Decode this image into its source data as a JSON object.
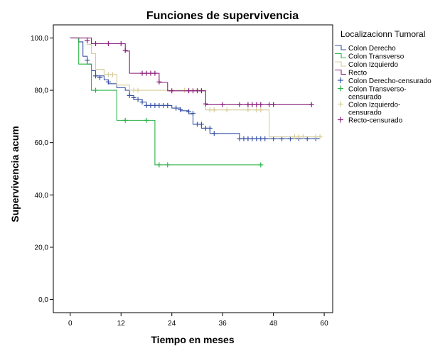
{
  "chart_data": {
    "type": "line",
    "title": "Funciones de supervivencia",
    "xlabel": "Tiempo en meses",
    "ylabel": "Supervivencia acum",
    "xlim": [
      -4,
      62
    ],
    "ylim": [
      -5,
      105
    ],
    "xticks": [
      "0",
      "12",
      "24",
      "36",
      "48",
      "60"
    ],
    "yticks": [
      "0,0",
      "20,0",
      "40,0",
      "60,0",
      "80,0",
      "100,0"
    ],
    "legend_title": "Localizacionn Tumoral",
    "legend_placement": "right",
    "legend": [
      {
        "label": "Colon Derecho",
        "kind": "line",
        "color": "#3953a4"
      },
      {
        "label": "Colon Transverso",
        "kind": "line",
        "color": "#2cb34a"
      },
      {
        "label": "Colon Izquierdo",
        "kind": "line",
        "color": "#d5cc9a"
      },
      {
        "label": "Recto",
        "kind": "line",
        "color": "#8a1f7a"
      },
      {
        "label": "Colon Derecho-censurado",
        "kind": "censor",
        "color": "#3953a4"
      },
      {
        "label": "Colon Transverso-\ncensurado",
        "kind": "censor",
        "color": "#2cb34a"
      },
      {
        "label": "Colon Izquierdo-\ncensurado",
        "kind": "censor",
        "color": "#d5cc9a"
      },
      {
        "label": "Recto-censurado",
        "kind": "censor",
        "color": "#8a1f7a"
      }
    ],
    "series": [
      {
        "name": "Colon Derecho",
        "color": "#3953a4",
        "steps": [
          [
            0,
            100
          ],
          [
            2,
            98.5
          ],
          [
            3,
            93
          ],
          [
            4,
            90
          ],
          [
            5,
            87.5
          ],
          [
            6,
            85.5
          ],
          [
            8,
            84
          ],
          [
            9,
            82.5
          ],
          [
            11,
            81
          ],
          [
            13,
            80
          ],
          [
            14,
            78
          ],
          [
            15,
            76.5
          ],
          [
            17,
            75.5
          ],
          [
            18,
            74.2
          ],
          [
            24,
            73.2
          ],
          [
            26,
            72.2
          ],
          [
            28,
            71
          ],
          [
            29,
            67
          ],
          [
            31,
            65.5
          ],
          [
            33,
            63.5
          ],
          [
            40,
            61.5
          ],
          [
            59,
            61.5
          ]
        ],
        "censored": [
          [
            4,
            91.5
          ],
          [
            6,
            85.5
          ],
          [
            7,
            84.8
          ],
          [
            9,
            83.2
          ],
          [
            14,
            78
          ],
          [
            15,
            77.2
          ],
          [
            16,
            76.5
          ],
          [
            17,
            75.5
          ],
          [
            18,
            74.2
          ],
          [
            19,
            74.2
          ],
          [
            20,
            74.2
          ],
          [
            21,
            74.2
          ],
          [
            22,
            74.2
          ],
          [
            23,
            74.2
          ],
          [
            25,
            73.2
          ],
          [
            26,
            72.6
          ],
          [
            28,
            71.8
          ],
          [
            29,
            71.2
          ],
          [
            30,
            67
          ],
          [
            31,
            67
          ],
          [
            32,
            65.5
          ],
          [
            33,
            65.5
          ],
          [
            34,
            63.5
          ],
          [
            40,
            61.5
          ],
          [
            41,
            61.5
          ],
          [
            42,
            61.5
          ],
          [
            43,
            61.5
          ],
          [
            44,
            61.5
          ],
          [
            45,
            61.5
          ],
          [
            46,
            61.5
          ],
          [
            48,
            61.5
          ],
          [
            50,
            61.5
          ],
          [
            52,
            61.5
          ],
          [
            54,
            61.5
          ],
          [
            56,
            61.5
          ],
          [
            58,
            61.5
          ]
        ]
      },
      {
        "name": "Colon Transverso",
        "color": "#2cb34a",
        "steps": [
          [
            0,
            100
          ],
          [
            2,
            90
          ],
          [
            5,
            80
          ],
          [
            11,
            68.5
          ],
          [
            20,
            51.5
          ],
          [
            45,
            51.5
          ]
        ],
        "censored": [
          [
            6,
            80
          ],
          [
            13,
            68.5
          ],
          [
            18,
            68.5
          ],
          [
            21,
            51.5
          ],
          [
            23,
            51.5
          ],
          [
            45,
            51.5
          ]
        ]
      },
      {
        "name": "Colon Izquierdo",
        "color": "#d5cc9a",
        "steps": [
          [
            0,
            100
          ],
          [
            4,
            97.5
          ],
          [
            5,
            94
          ],
          [
            6,
            88
          ],
          [
            8,
            86
          ],
          [
            11,
            82
          ],
          [
            14,
            80
          ],
          [
            32,
            72.5
          ],
          [
            47,
            62.2
          ],
          [
            59,
            62.2
          ]
        ],
        "censored": [
          [
            9,
            86
          ],
          [
            10,
            86
          ],
          [
            15,
            80
          ],
          [
            16,
            80
          ],
          [
            27,
            80
          ],
          [
            28,
            80
          ],
          [
            30,
            80
          ],
          [
            31,
            80
          ],
          [
            33,
            72.5
          ],
          [
            34,
            72.5
          ],
          [
            37,
            72.5
          ],
          [
            42,
            72.5
          ],
          [
            44,
            72.5
          ],
          [
            45,
            72.5
          ],
          [
            53,
            62.2
          ],
          [
            54,
            62.2
          ],
          [
            55,
            62.2
          ],
          [
            58,
            62.2
          ],
          [
            59,
            62.2
          ]
        ]
      },
      {
        "name": "Recto",
        "color": "#8a1f7a",
        "steps": [
          [
            0,
            100
          ],
          [
            5,
            97.8
          ],
          [
            13,
            95
          ],
          [
            14,
            86.5
          ],
          [
            21,
            83
          ],
          [
            23,
            79.8
          ],
          [
            32,
            74.5
          ],
          [
            57,
            74.5
          ]
        ],
        "censored": [
          [
            4,
            99
          ],
          [
            6,
            97.8
          ],
          [
            9,
            97.8
          ],
          [
            12,
            97.8
          ],
          [
            13,
            95.2
          ],
          [
            17,
            86.5
          ],
          [
            18,
            86.5
          ],
          [
            19,
            86.5
          ],
          [
            20,
            86.5
          ],
          [
            21,
            83.2
          ],
          [
            24,
            79.8
          ],
          [
            28,
            79.8
          ],
          [
            29,
            79.8
          ],
          [
            30,
            79.8
          ],
          [
            31,
            79.8
          ],
          [
            32,
            74.8
          ],
          [
            36,
            74.5
          ],
          [
            40,
            74.5
          ],
          [
            42,
            74.5
          ],
          [
            43,
            74.5
          ],
          [
            44,
            74.5
          ],
          [
            45,
            74.5
          ],
          [
            47,
            74.5
          ],
          [
            48,
            74.5
          ],
          [
            57,
            74.5
          ]
        ]
      }
    ]
  }
}
